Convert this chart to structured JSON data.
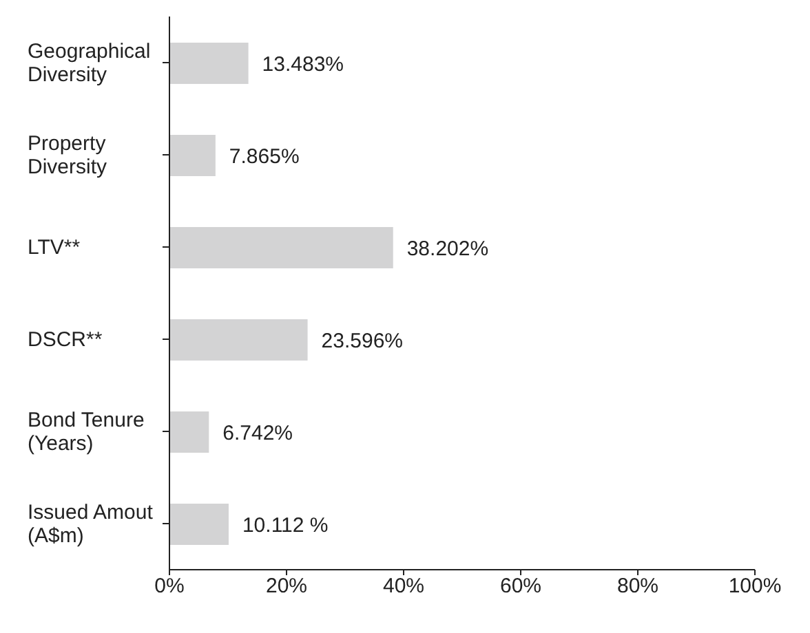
{
  "chart_data": {
    "type": "bar",
    "orientation": "horizontal",
    "categories": [
      "Geographical\nDiversity",
      "Property\nDiversity",
      "LTV**",
      "DSCR**",
      "Bond Tenure\n(Years)",
      "Issued Amout\n(A$m)"
    ],
    "values": [
      13.483,
      7.865,
      38.202,
      23.596,
      6.742,
      10.112
    ],
    "value_labels": [
      "13.483%",
      "7.865%",
      "38.202%",
      "23.596%",
      "6.742%",
      "10.112 %"
    ],
    "color": "#d3d3d4",
    "xlim": [
      0,
      100
    ],
    "xticks": [
      {
        "value": 0,
        "label": "0%"
      },
      {
        "value": 20,
        "label": "20%"
      },
      {
        "value": 40,
        "label": "40%"
      },
      {
        "value": 60,
        "label": "60%"
      },
      {
        "value": 80,
        "label": "80%"
      },
      {
        "value": 100,
        "label": "100%"
      }
    ],
    "grid": false,
    "legend": false
  }
}
